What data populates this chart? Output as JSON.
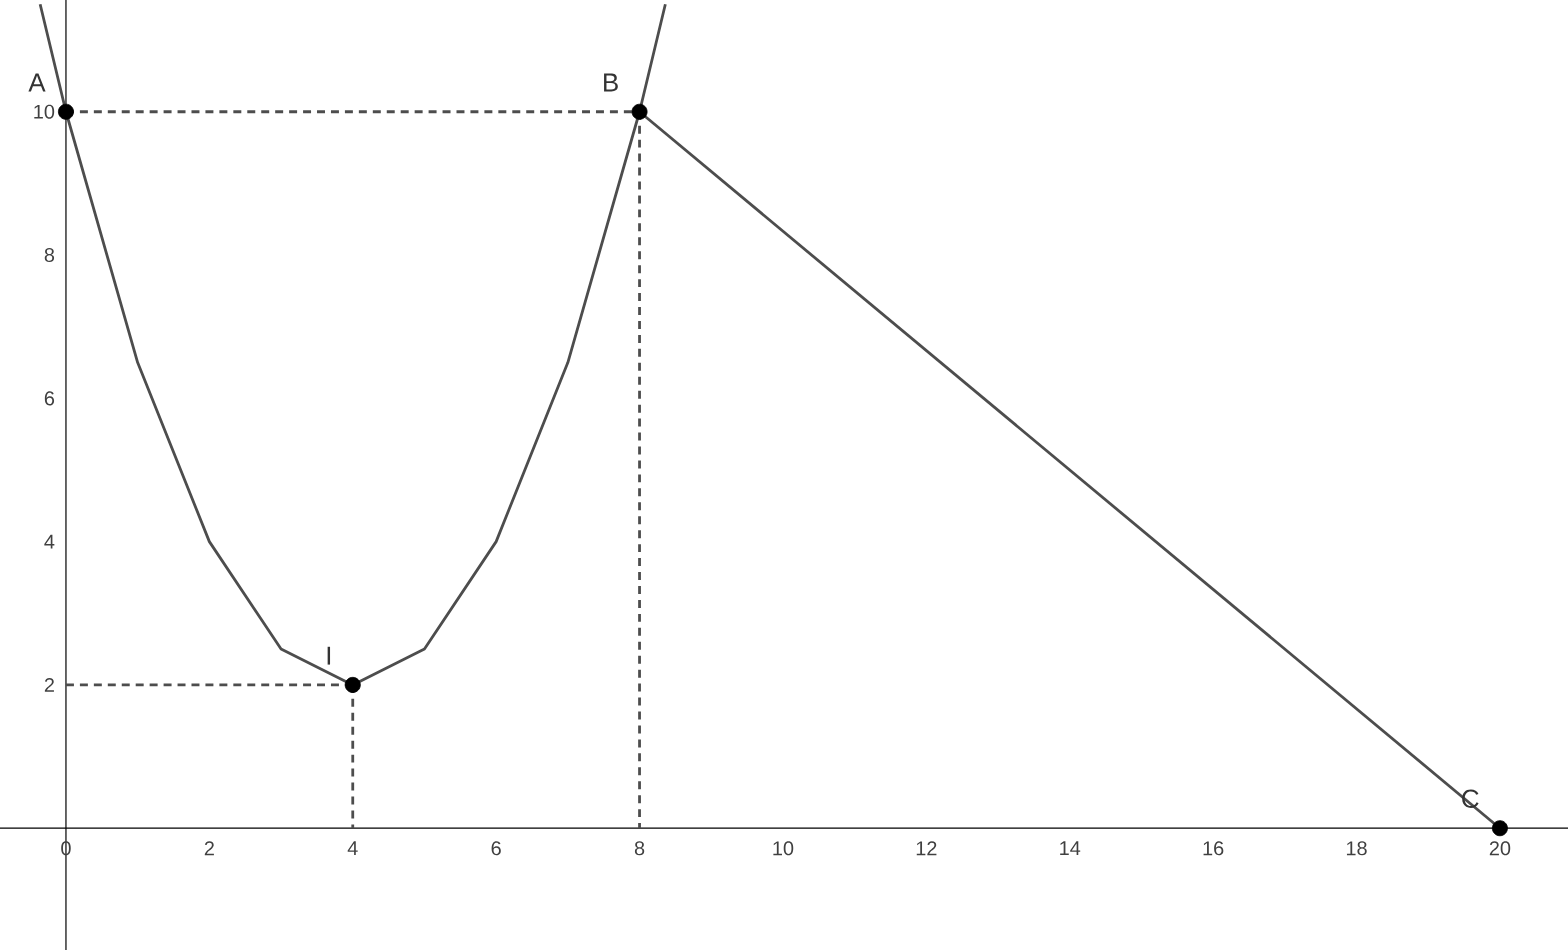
{
  "chart_data": {
    "type": "line",
    "xlim": [
      -0.92,
      20.95
    ],
    "ylim": [
      -1.7,
      11.56
    ],
    "xticks": [
      0,
      2,
      4,
      6,
      8,
      10,
      12,
      14,
      16,
      18,
      20
    ],
    "yticks": [
      2,
      4,
      6,
      8,
      10
    ],
    "series": [
      {
        "color": "#4d4d4d",
        "line_style": "solid",
        "x": [
          -0.36,
          0,
          1,
          2,
          3,
          4,
          5,
          6,
          7,
          8,
          8.36
        ],
        "values": [
          11.5,
          10,
          6.5,
          4,
          2.5,
          2,
          2.5,
          4,
          6.5,
          10,
          11.5
        ]
      },
      {
        "color": "#4d4d4d",
        "line_style": "solid",
        "x": [
          8,
          20
        ],
        "values": [
          10,
          0
        ]
      },
      {
        "color": "#4d4d4d",
        "line_style": "dashed",
        "x": [
          0,
          8
        ],
        "values": [
          10,
          10
        ]
      },
      {
        "color": "#4d4d4d",
        "line_style": "dashed",
        "x": [
          8,
          8
        ],
        "values": [
          10,
          0
        ]
      },
      {
        "color": "#4d4d4d",
        "line_style": "dashed",
        "x": [
          0,
          4
        ],
        "values": [
          2,
          2
        ]
      },
      {
        "color": "#4d4d4d",
        "line_style": "dashed",
        "x": [
          4,
          4
        ],
        "values": [
          2,
          0
        ]
      },
      {
        "type": "scatter",
        "color": "#000000",
        "marker": "circle",
        "x": [
          0,
          8,
          4,
          20
        ],
        "values": [
          10,
          10,
          2,
          0
        ]
      }
    ],
    "annotations": [
      {
        "text": "A",
        "x": 0,
        "y": 10
      },
      {
        "text": "B",
        "x": 8,
        "y": 10
      },
      {
        "text": "I",
        "x": 4,
        "y": 2
      },
      {
        "text": "C",
        "x": 20,
        "y": 0
      }
    ]
  }
}
